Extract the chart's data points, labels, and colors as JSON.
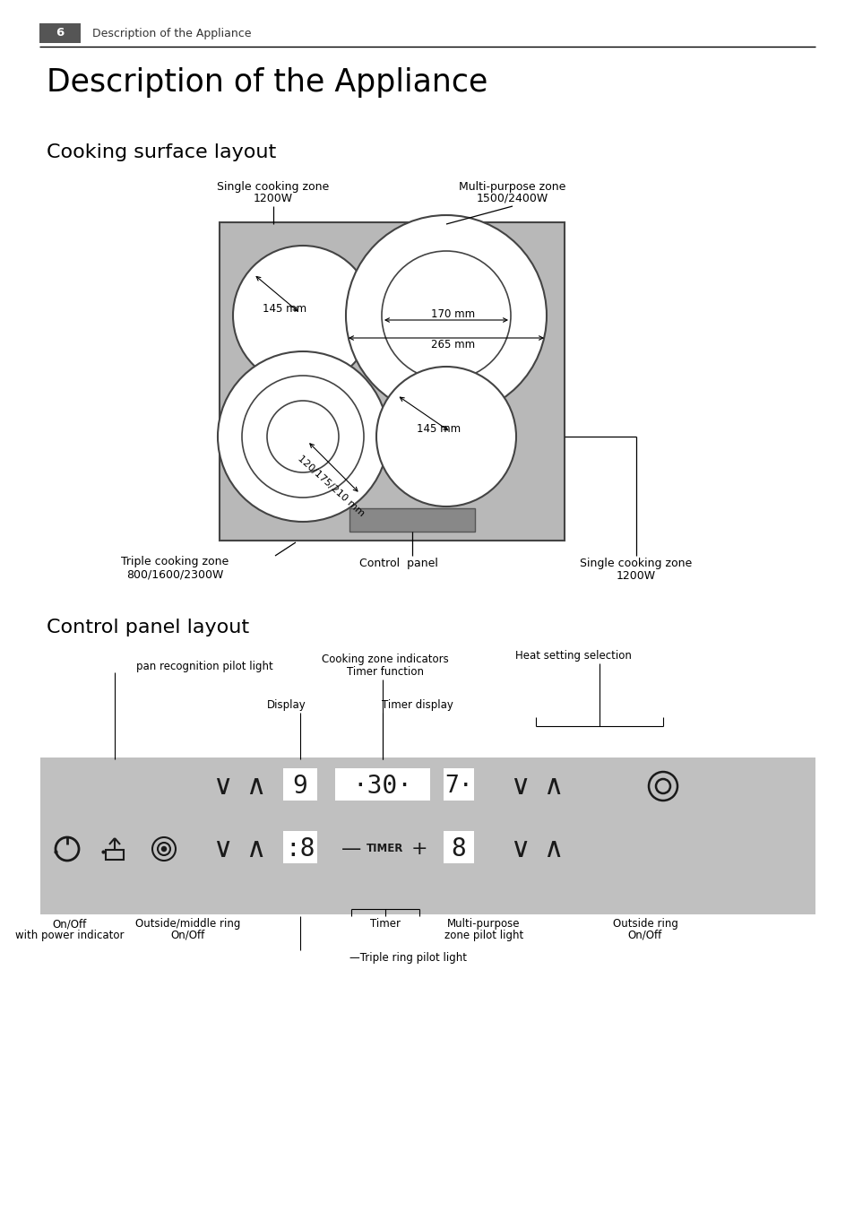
{
  "page_num": "6",
  "header_text": "Description of the Appliance",
  "main_title": "Description of the Appliance",
  "section1_title": "Cooking surface layout",
  "section2_title": "Control panel layout",
  "white": "#ffffff",
  "black": "#000000",
  "box_fill": "#b5b5b5",
  "box_edge": "#444444",
  "slot_fill": "#888888",
  "panel_fill": "#c0c0c0",
  "header_fill": "#555555",
  "label_top_left_line1": "Single cooking zone",
  "label_top_left_line2": "1200W",
  "label_top_right_line1": "Multi-purpose zone",
  "label_top_right_line2": "1500/2400W",
  "label_bottom_left_line1": "Triple cooking zone",
  "label_bottom_left_line2": "800/1600/2300W",
  "label_bottom_center": "Control  panel",
  "label_bottom_right_line1": "Single cooking zone",
  "label_bottom_right_line2": "1200W",
  "dim_tl": "145 mm",
  "dim_tr1": "170 mm",
  "dim_tr2": "265 mm",
  "dim_bl": "120/175/210 mm",
  "dim_br": "145 mm",
  "cp_label1": "pan recognition pilot light",
  "cp_label2_line1": "Cooking zone indicators",
  "cp_label2_line2": "Timer function",
  "cp_label3": "Heat setting selection",
  "cp_label4": "Display",
  "cp_label5": "Timer display",
  "cp_label6_line1": "On/Off",
  "cp_label6_line2": "with power indicator",
  "cp_label7_line1": "Outside/middle ring",
  "cp_label7_line2": "On/Off",
  "cp_label8": "Triple ring pilot light",
  "cp_label9": "Timer",
  "cp_label10_line1": "Multi-purpose",
  "cp_label10_line2": "zone pilot light",
  "cp_label11_line1": "Outside ring",
  "cp_label11_line2": "On/Off"
}
